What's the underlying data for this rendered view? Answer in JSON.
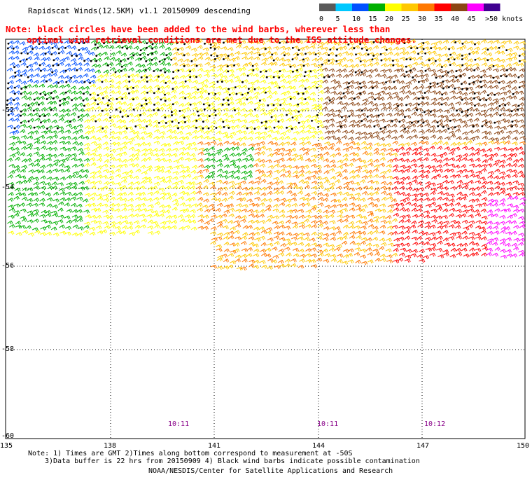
{
  "header": {
    "title": "Rapidscat Winds(12.5KM) v1.1 20150909 descending",
    "note_line1": "Note: black circles have been added to the wind barbs, wherever less than",
    "note_line2": "    optimal wind retrieval conditions are met due to the ISS attitude changes."
  },
  "legend": {
    "labels": [
      "0",
      "5",
      "10",
      "15",
      "20",
      "25",
      "30",
      "35",
      "40",
      "45",
      ">50 knots"
    ],
    "colors": [
      "#5a5a5a",
      "#00c8ff",
      "#0050ff",
      "#00b000",
      "#ffff00",
      "#ffc800",
      "#ff7800",
      "#ff0000",
      "#8b4513",
      "#ff00ff",
      "#400090"
    ]
  },
  "axes": {
    "lat_labels": [
      "-52",
      "-54",
      "-56",
      "-58",
      "-60"
    ],
    "lon_labels": [
      "135",
      "138",
      "141",
      "144",
      "147",
      "150"
    ]
  },
  "times": [
    "10:11",
    "10:11",
    "10:12"
  ],
  "footer": {
    "line1": "Note: 1) Times are GMT 2)Times along bottom correspond to measurement at -50S",
    "line2": "3)Data buffer is 22 hrs from 20150909 4) Black wind barbs indicate possible contamination",
    "line3": "NOAA/NESDIS/Center for Satellite Applications and Research"
  }
}
